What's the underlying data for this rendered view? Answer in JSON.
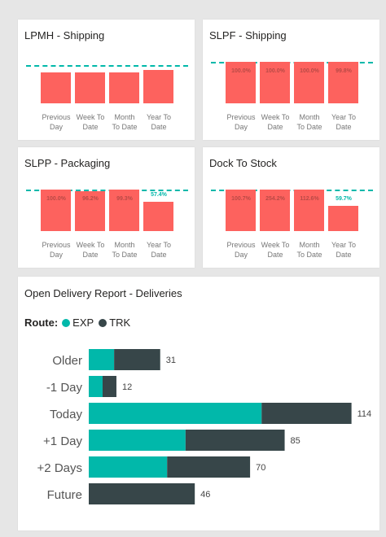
{
  "colors": {
    "bar": "#fd625e",
    "target": "#01b8aa",
    "exp": "#01b8aa",
    "trk": "#374649"
  },
  "panels": [
    {
      "title": "LPMH - Shipping",
      "categories": [
        "Previous\nDay",
        "Week To\nDate",
        "Month\nTo Date",
        "Year To\nDate"
      ],
      "labels": [
        "",
        "",
        "",
        ""
      ]
    },
    {
      "title": "SLPF - Shipping",
      "categories": [
        "Previous\nDay",
        "Week To\nDate",
        "Month\nTo Date",
        "Year To\nDate"
      ],
      "labels": [
        "100.0%",
        "100.0%",
        "100.0%",
        "99.8%"
      ]
    },
    {
      "title": "SLPP - Packaging",
      "categories": [
        "Previous\nDay",
        "Week To\nDate",
        "Month\nTo Date",
        "Year To\nDate"
      ],
      "labels": [
        "100.0%",
        "96.2%",
        "99.3%",
        "57.4%"
      ]
    },
    {
      "title": "Dock To Stock",
      "categories": [
        "Previous\nDay",
        "Week To\nDate",
        "Month\nTo Date",
        "Year To\nDate"
      ],
      "labels": [
        "100.7%",
        "254.2%",
        "112.6%",
        "59.7%"
      ]
    }
  ],
  "report": {
    "title": "Open Delivery Report - Deliveries",
    "legend_title": "Route:",
    "legend": [
      "EXP",
      "TRK"
    ]
  },
  "chart_data": [
    {
      "type": "bar",
      "title": "LPMH - Shipping",
      "categories": [
        "Previous Day",
        "Week To Date",
        "Month To Date",
        "Year To Date"
      ],
      "values": [
        0.93,
        0.93,
        0.93,
        1.0
      ],
      "target": 1.18
    },
    {
      "type": "bar",
      "title": "SLPF - Shipping",
      "categories": [
        "Previous Day",
        "Week To Date",
        "Month To Date",
        "Year To Date"
      ],
      "values": [
        100.0,
        100.0,
        100.0,
        99.8
      ],
      "target": 100.0
    },
    {
      "type": "bar",
      "title": "SLPP - Packaging",
      "categories": [
        "Previous Day",
        "Week To Date",
        "Month To Date",
        "Year To Date"
      ],
      "values": [
        100.0,
        96.2,
        99.3,
        57.4
      ],
      "target": 100.0
    },
    {
      "type": "bar",
      "title": "Dock To Stock",
      "categories": [
        "Previous Day",
        "Week To Date",
        "Month To Date",
        "Year To Date"
      ],
      "values": [
        100.7,
        254.2,
        112.6,
        59.7
      ],
      "target": 100.0
    },
    {
      "type": "bar",
      "orientation": "horizontal",
      "stacked": true,
      "title": "Open Delivery Report - Deliveries",
      "categories": [
        "Older",
        "-1 Day",
        "Today",
        "+1 Day",
        "+2 Days",
        "Future"
      ],
      "series": [
        {
          "name": "EXP",
          "values": [
            11,
            6,
            75,
            42,
            34,
            0
          ]
        },
        {
          "name": "TRK",
          "values": [
            20,
            6,
            39,
            43,
            36,
            46
          ]
        }
      ],
      "totals": [
        31,
        12,
        114,
        85,
        70,
        46
      ],
      "legend": "top-left"
    }
  ]
}
